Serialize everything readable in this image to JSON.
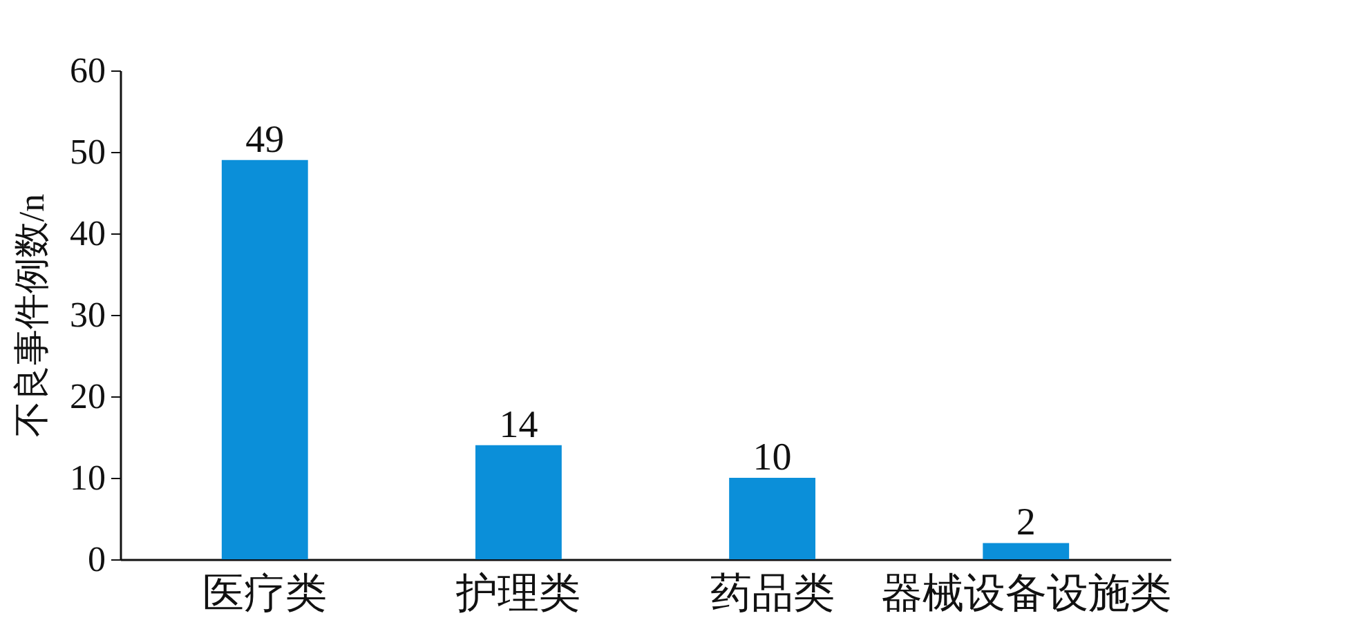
{
  "chart_data": {
    "type": "bar",
    "ylabel": "不良事件例数/n",
    "categories": [
      "医疗类",
      "护理类",
      "药品类",
      "器械设备设施类"
    ],
    "values": [
      49,
      14,
      10,
      2
    ],
    "color": "#0b8fd9",
    "ylim": [
      0,
      60
    ],
    "yticks": [
      0,
      10,
      20,
      30,
      40,
      50,
      60
    ],
    "grid": false,
    "data_labels": true
  }
}
